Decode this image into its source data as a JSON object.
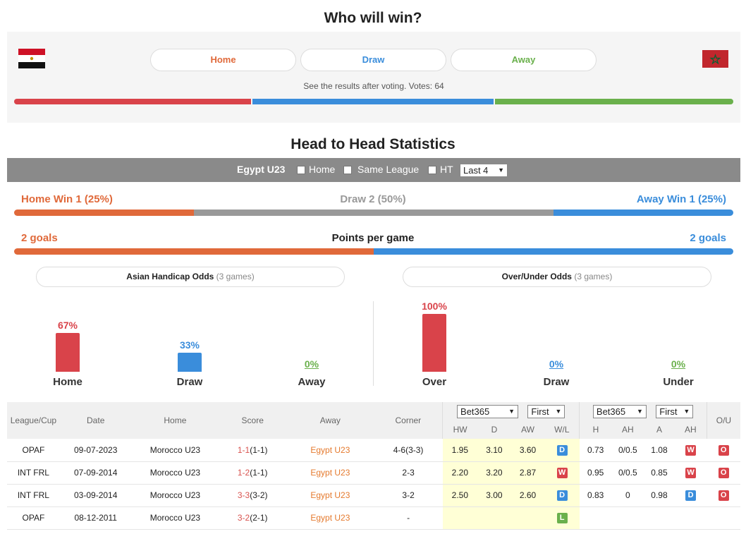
{
  "vote": {
    "title": "Who will win?",
    "home_label": "Home",
    "draw_label": "Draw",
    "away_label": "Away",
    "note": "See the results after voting. Votes: 64",
    "home_share": 0.33,
    "draw_share": 0.34,
    "away_share": 0.33
  },
  "h2h": {
    "title": "Head to Head Statistics",
    "team": "Egypt U23",
    "filter_home": "Home",
    "filter_same_league": "Same League",
    "filter_ht": "HT",
    "last_select": "Last 4",
    "home_win": "Home Win 1 (25%)",
    "draw": "Draw 2 (50%)",
    "away_win": "Away Win 1 (25%)",
    "home_goals": "2 goals",
    "ppg_label": "Points per game",
    "away_goals": "2 goals",
    "asian_title": "Asian Handicap Odds",
    "asian_games": "(3 games)",
    "ou_title": "Over/Under Odds",
    "ou_games": "(3 games)"
  },
  "asian": [
    {
      "pct": "67%",
      "label": "Home",
      "value": 0.67,
      "color": "#d9434a"
    },
    {
      "pct": "33%",
      "label": "Draw",
      "value": 0.33,
      "color": "#3a8ddb"
    },
    {
      "pct": "0%",
      "label": "Away",
      "value": 0,
      "color": "#6ab04c"
    }
  ],
  "ou": [
    {
      "pct": "100%",
      "label": "Over",
      "value": 1.0,
      "color": "#d9434a"
    },
    {
      "pct": "0%",
      "label": "Draw",
      "value": 0,
      "color": "#3a8ddb"
    },
    {
      "pct": "0%",
      "label": "Under",
      "value": 0,
      "color": "#6ab04c"
    }
  ],
  "table": {
    "headers": [
      "League/Cup",
      "Date",
      "Home",
      "Score",
      "Away",
      "Corner"
    ],
    "bookmaker1": "Bet365",
    "period1": "First",
    "bookmaker2": "Bet365",
    "period2": "First",
    "ou_header": "O/U",
    "sub1": [
      "HW",
      "D",
      "AW",
      "W/L"
    ],
    "sub2": [
      "H",
      "AH",
      "A",
      "AH"
    ],
    "rows": [
      {
        "league": "OPAF",
        "date": "09-07-2023",
        "home": "Morocco U23",
        "score_ft": "1-1",
        "score_ht": "(1-1)",
        "away": "Egypt U23",
        "corner": "4-6(3-3)",
        "hw": "1.95",
        "d": "3.10",
        "aw": "3.60",
        "wl": "D",
        "h": "0.73",
        "ah": "0/0.5",
        "a": "1.08",
        "ahr": "W",
        "ou": "O"
      },
      {
        "league": "INT FRL",
        "date": "07-09-2014",
        "home": "Morocco U23",
        "score_ft": "1-2",
        "score_ht": "(1-1)",
        "away": "Egypt U23",
        "corner": "2-3",
        "hw": "2.20",
        "d": "3.20",
        "aw": "2.87",
        "wl": "W",
        "h": "0.95",
        "ah": "0/0.5",
        "a": "0.85",
        "ahr": "W",
        "ou": "O"
      },
      {
        "league": "INT FRL",
        "date": "03-09-2014",
        "home": "Morocco U23",
        "score_ft": "3-3",
        "score_ht": "(3-2)",
        "away": "Egypt U23",
        "corner": "3-2",
        "hw": "2.50",
        "d": "3.00",
        "aw": "2.60",
        "wl": "D",
        "h": "0.83",
        "ah": "0",
        "a": "0.98",
        "ahr": "D",
        "ou": "O"
      },
      {
        "league": "OPAF",
        "date": "08-12-2011",
        "home": "Morocco U23",
        "score_ft": "3-2",
        "score_ht": "(2-1)",
        "away": "Egypt U23",
        "corner": "-",
        "hw": "",
        "d": "",
        "aw": "",
        "wl": "L",
        "h": "",
        "ah": "",
        "a": "",
        "ahr": "",
        "ou": ""
      }
    ]
  },
  "colors": {
    "red": "#d9434a",
    "blue": "#3a8ddb",
    "green": "#6ab04c",
    "orange": "#e0693a",
    "grey": "#999999"
  }
}
